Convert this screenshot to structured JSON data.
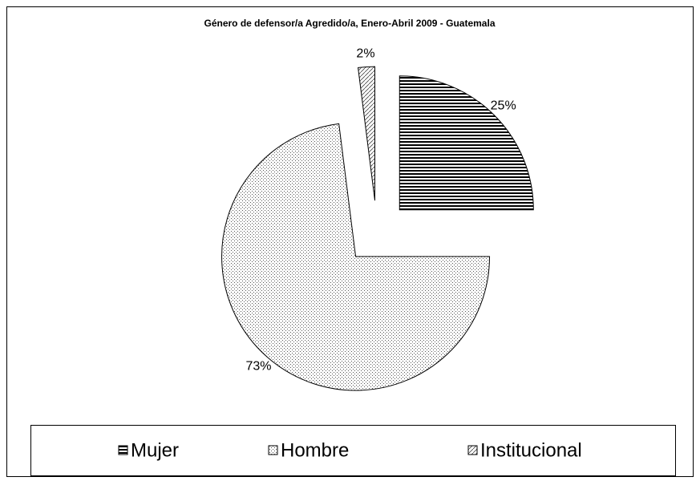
{
  "chart_data": {
    "type": "pie",
    "title": "Género de defensor/a Agredido/a, Enero-Abril 2009 - Guatemala",
    "categories": [
      "Mujer",
      "Hombre",
      "Institucional"
    ],
    "values": [
      25,
      73,
      2
    ],
    "value_labels": [
      "25%",
      "73%",
      "2%"
    ],
    "legend": "bottom"
  }
}
